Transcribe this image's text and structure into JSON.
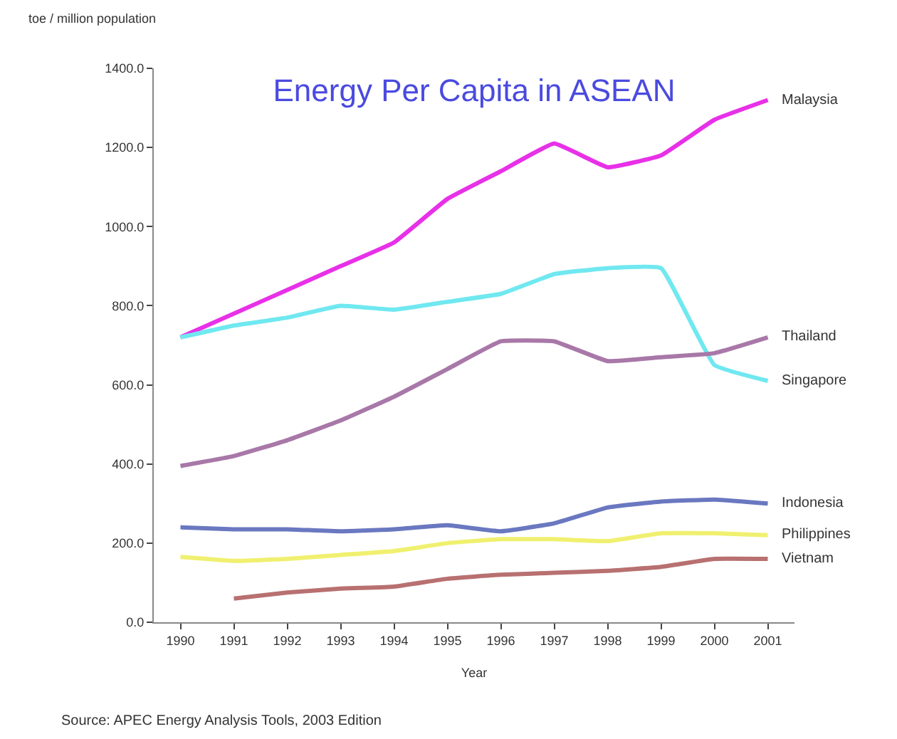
{
  "chart_data": {
    "type": "line",
    "title": "Energy Per Capita in ASEAN",
    "ylabel": "toe / million population",
    "xlabel": "Year",
    "categories": [
      "1990",
      "1991",
      "1992",
      "1993",
      "1994",
      "1995",
      "1996",
      "1997",
      "1998",
      "1999",
      "2000",
      "2001"
    ],
    "series": [
      {
        "name": "Malaysia",
        "color": "#e830e8",
        "values": [
          720,
          780,
          840,
          900,
          960,
          1070,
          1140,
          1210,
          1150,
          1180,
          1270,
          1320
        ]
      },
      {
        "name": "Singapore",
        "color": "#70e8f0",
        "values": [
          720,
          750,
          770,
          800,
          790,
          810,
          830,
          880,
          895,
          895,
          650,
          610
        ]
      },
      {
        "name": "Thailand",
        "color": "#a878a8",
        "values": [
          395,
          420,
          460,
          510,
          570,
          640,
          710,
          710,
          660,
          670,
          680,
          720
        ]
      },
      {
        "name": "Indonesia",
        "color": "#6a78c0",
        "values": [
          240,
          235,
          235,
          230,
          235,
          245,
          230,
          250,
          290,
          305,
          310,
          300
        ]
      },
      {
        "name": "Philippines",
        "color": "#f0f070",
        "values": [
          165,
          155,
          160,
          170,
          180,
          200,
          210,
          210,
          205,
          225,
          225,
          220
        ]
      },
      {
        "name": "Vietnam",
        "color": "#b87070",
        "values": [
          null,
          60,
          75,
          85,
          90,
          110,
          120,
          125,
          130,
          140,
          160,
          160
        ]
      }
    ],
    "ylim": [
      0,
      1400
    ],
    "yticks": [
      {
        "value": 0,
        "label": "0.0"
      },
      {
        "value": 200,
        "label": "200.0"
      },
      {
        "value": 400,
        "label": "400.0"
      },
      {
        "value": 600,
        "label": "600.0"
      },
      {
        "value": 800,
        "label": "800.0"
      },
      {
        "value": 1000,
        "label": "1000.0"
      },
      {
        "value": 1200,
        "label": "1200.0"
      },
      {
        "value": 1400,
        "label": "1400.0"
      }
    ],
    "legend": false,
    "marker": "none",
    "line_style": "solid",
    "annotations": [
      "Source: APEC Energy Analysis Tools, 2003 Edition"
    ]
  }
}
